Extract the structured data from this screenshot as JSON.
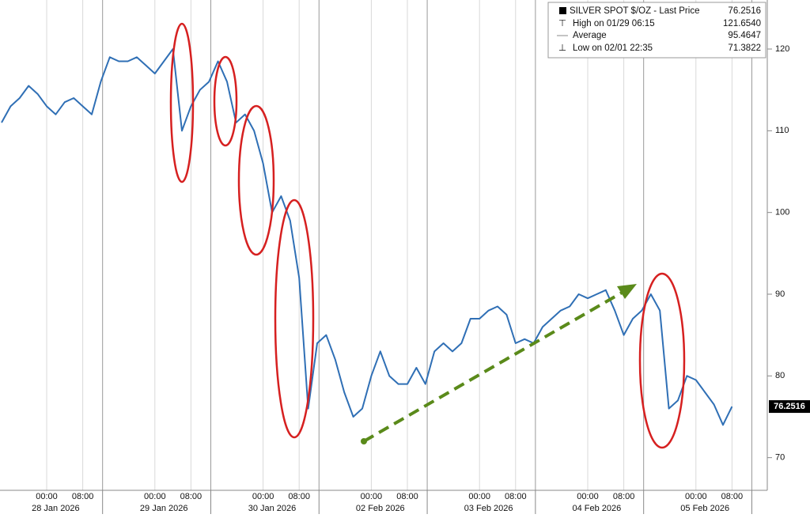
{
  "chart_data": {
    "type": "line",
    "categories": [
      null,
      null,
      null,
      null,
      null,
      "00:00",
      null,
      null,
      null,
      "08:00",
      null,
      null,
      null,
      null,
      null,
      null,
      null,
      "00:00",
      null,
      null,
      null,
      "08:00",
      null,
      null,
      null,
      null,
      null,
      null,
      null,
      "00:00",
      null,
      null,
      null,
      "08:00",
      null,
      null,
      null,
      null,
      null,
      null,
      null,
      "00:00",
      null,
      null,
      null,
      "08:00",
      null,
      null,
      null,
      null,
      null,
      null,
      null,
      "00:00",
      null,
      null,
      null,
      "08:00",
      null,
      null,
      null,
      null,
      null,
      null,
      null,
      "00:00",
      null,
      null,
      null,
      "08:00",
      null,
      null,
      null,
      null,
      null,
      null,
      null,
      "00:00",
      null,
      null,
      null,
      "08:00"
    ],
    "date_labels": [
      "28 Jan 2026",
      "29 Jan 2026",
      "30 Jan 2026",
      "02 Feb 2026",
      "03 Feb 2026",
      "04 Feb 2026",
      "05 Feb 2026"
    ],
    "series": [
      {
        "name": "SILVER SPOT $/OZ - Last Price",
        "color": "#2f6fb5",
        "values": [
          111,
          113,
          114,
          115.5,
          114.5,
          113,
          112,
          113.5,
          114,
          113,
          112,
          116,
          119,
          118.5,
          118.5,
          119,
          118,
          117,
          118.5,
          120,
          110,
          113,
          115,
          116,
          118.5,
          116,
          111,
          112,
          110,
          106,
          100,
          102,
          99,
          92,
          76,
          84,
          85,
          82,
          78,
          75,
          76,
          80,
          83,
          80,
          79,
          79,
          81,
          79,
          83,
          84,
          83,
          84,
          87,
          87,
          88,
          88.5,
          87.5,
          84,
          84.5,
          84,
          86,
          87,
          88,
          88.5,
          90,
          89.5,
          90,
          90.5,
          88,
          85,
          87,
          88,
          90,
          88,
          76,
          77,
          80,
          79.5,
          78,
          76.5,
          74,
          76.2516
        ]
      }
    ],
    "legend_stats": [
      {
        "label": "SILVER SPOT $/OZ - Last Price",
        "value": "76.2516"
      },
      {
        "label": "High on 01/29 06:15",
        "value": "121.6540"
      },
      {
        "label": "Average",
        "value": "95.4647"
      },
      {
        "label": "Low on 02/01 22:35",
        "value": "71.3822"
      }
    ],
    "ylim": [
      66,
      126
    ],
    "yticks": [
      70,
      80,
      90,
      100,
      110,
      120
    ],
    "grid": true
  }
}
